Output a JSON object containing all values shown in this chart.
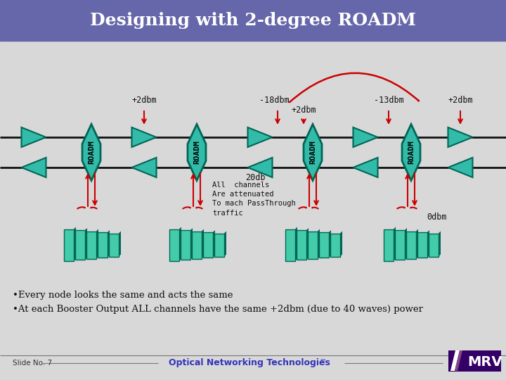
{
  "title": "Designing with 2-degree ROADM",
  "title_bg_color": "#6666aa",
  "title_text_color": "#ffffff",
  "bg_color": "#d8d8d8",
  "teal_color": "#33bbaa",
  "teal_dark": "#006655",
  "teal_card": "#44ccaa",
  "red_color": "#cc0000",
  "black_color": "#111111",
  "bullet1": "Every node looks the same and acts the same",
  "bullet2": "At each Booster Output ALL channels have the same +2dbm (due to 40 waves) power",
  "footer_text": "Optical Networking Technologies",
  "footer_tm": "™",
  "slide_no": "Slide No. 7",
  "label_20db": "20db",
  "label_all_channels": "All  channels\nAre attenuated\nTo mach PassThrough\ntraffic",
  "label_0dbm": "0dbm",
  "label_p2dbm_1": "+2dbm",
  "label_m18dbm": "-18dbm",
  "label_p2dbm_2": "+2dbm",
  "label_m13dbm": "-13dbm",
  "label_p2dbm_3": "+2dbm"
}
